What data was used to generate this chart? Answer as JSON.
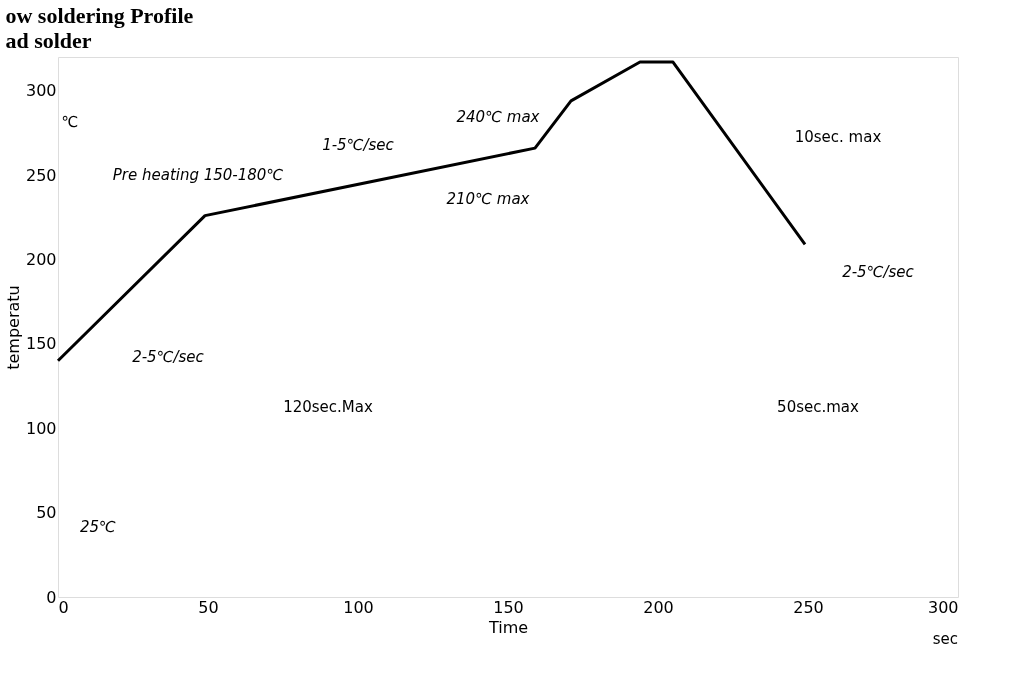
{
  "chart_data": {
    "type": "line",
    "title": "ow soldering Profile",
    "subtitle": "ad solder",
    "xlabel": "Time",
    "ylabel": "temperatu",
    "xlim": [
      0,
      300
    ],
    "xticks": [
      0,
      50,
      100,
      150,
      200,
      250,
      300
    ],
    "ylim": [
      0,
      320
    ],
    "yticks": [
      0,
      50,
      100,
      150,
      200,
      250,
      300
    ],
    "series": [
      {
        "color": "#000000",
        "x": [
          0,
          49,
          159,
          171,
          194,
          205,
          249
        ],
        "values": [
          140,
          226,
          266,
          294,
          317,
          317,
          209
        ]
      }
    ],
    "annotations": [
      "℃",
      "Pre heating 150-180℃",
      "1-5℃/sec",
      "210℃ max",
      "240℃ max",
      "10sec. max",
      "2-5℃/sec",
      "2-5℃/sec",
      "120sec.Max",
      "50sec.max",
      "25℃",
      "sec"
    ]
  }
}
